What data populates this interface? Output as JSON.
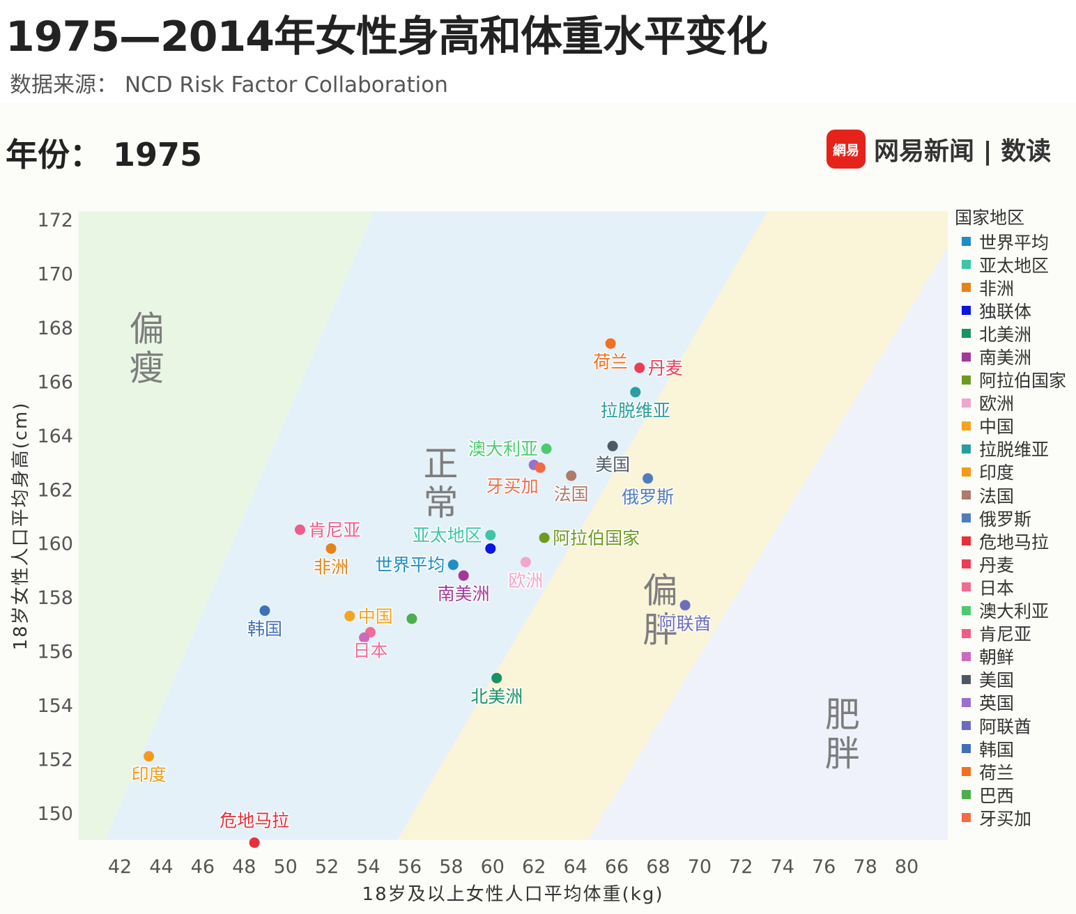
{
  "header": {
    "title": "1975—2014年女性身高和体重水平变化",
    "source": "数据来源： NCD Risk Factor Collaboration",
    "year_label": "年份： 1975",
    "brand_logo": "網易",
    "brand_name": "网易新闻 | 数读"
  },
  "chart_data": {
    "type": "scatter",
    "xlabel": "18岁及以上女性人口平均体重(kg)",
    "ylabel": "18岁女性人口平均身高(cm)",
    "xlim": [
      40,
      82
    ],
    "ylim": [
      149,
      172.3
    ],
    "xticks": [
      42,
      44,
      46,
      48,
      50,
      52,
      54,
      56,
      58,
      60,
      62,
      64,
      66,
      68,
      70,
      72,
      74,
      76,
      78,
      80
    ],
    "yticks": [
      150,
      152,
      154,
      156,
      158,
      160,
      162,
      164,
      166,
      168,
      170,
      172
    ],
    "grid": false,
    "legend_position": "right",
    "regions": [
      {
        "name": "偏瘦",
        "color": "#e9f6e4",
        "polygon": [
          [
            40,
            149
          ],
          [
            41.3,
            149
          ],
          [
            54.3,
            172.3
          ],
          [
            40,
            172.3
          ]
        ],
        "label_at": [
          43.3,
          167.5
        ]
      },
      {
        "name": "正常",
        "color": "#e5f1f8",
        "polygon": [
          [
            41.3,
            149
          ],
          [
            55.4,
            149
          ],
          [
            73.3,
            172.3
          ],
          [
            54.3,
            172.3
          ]
        ],
        "label_at": [
          57.5,
          162.5
        ]
      },
      {
        "name": "偏胖",
        "color": "#faf4d8",
        "polygon": [
          [
            55.4,
            149
          ],
          [
            64.6,
            149
          ],
          [
            82,
            171
          ],
          [
            82,
            172.3
          ],
          [
            73.3,
            172.3
          ]
        ],
        "label_at": [
          68.1,
          157.8
        ]
      },
      {
        "name": "肥胖",
        "color": "#eff2fa",
        "polygon": [
          [
            64.6,
            149
          ],
          [
            82,
            149
          ],
          [
            82,
            171
          ]
        ],
        "label_at": [
          76.9,
          153.2
        ]
      }
    ],
    "points": [
      {
        "name": "世界平均",
        "x": 58.1,
        "y": 159.2,
        "color": "#1f8dc6",
        "label_pos": "left"
      },
      {
        "name": "亚太地区",
        "x": 59.9,
        "y": 160.3,
        "color": "#3cc6a5",
        "label_pos": "left"
      },
      {
        "name": "非洲",
        "x": 52.2,
        "y": 159.8,
        "color": "#e5831b",
        "label_pos": "below"
      },
      {
        "name": "独联体",
        "x": 59.9,
        "y": 159.8,
        "color": "#0a17e0",
        "label_pos": "none"
      },
      {
        "name": "北美洲",
        "x": 60.2,
        "y": 155.0,
        "color": "#1a9265",
        "label_pos": "below"
      },
      {
        "name": "南美洲",
        "x": 58.6,
        "y": 158.8,
        "color": "#a2399a",
        "label_pos": "below"
      },
      {
        "name": "阿拉伯国家",
        "x": 62.5,
        "y": 160.2,
        "color": "#6f9a22",
        "label_pos": "right"
      },
      {
        "name": "欧洲",
        "x": 61.6,
        "y": 159.3,
        "color": "#f2a6cd",
        "label_pos": "below"
      },
      {
        "name": "中国",
        "x": 53.1,
        "y": 157.3,
        "color": "#f5a31e",
        "label_pos": "right"
      },
      {
        "name": "拉脱维亚",
        "x": 66.9,
        "y": 165.6,
        "color": "#2a9e9e",
        "label_pos": "below"
      },
      {
        "name": "印度",
        "x": 43.4,
        "y": 152.1,
        "color": "#f59a16",
        "label_pos": "below"
      },
      {
        "name": "法国",
        "x": 63.8,
        "y": 162.5,
        "color": "#ad7a6c",
        "label_pos": "below"
      },
      {
        "name": "俄罗斯",
        "x": 67.5,
        "y": 162.4,
        "color": "#4f7dbd",
        "label_pos": "below"
      },
      {
        "name": "危地马拉",
        "x": 48.5,
        "y": 148.9,
        "color": "#e6303a",
        "label_pos": "above"
      },
      {
        "name": "丹麦",
        "x": 67.1,
        "y": 166.5,
        "color": "#ec3d57",
        "label_pos": "right"
      },
      {
        "name": "日本",
        "x": 54.1,
        "y": 156.7,
        "color": "#f06c97",
        "label_pos": "below"
      },
      {
        "name": "澳大利亚",
        "x": 62.6,
        "y": 163.5,
        "color": "#4dca6f",
        "label_pos": "left"
      },
      {
        "name": "肯尼亚",
        "x": 50.7,
        "y": 160.5,
        "color": "#ee5b8c",
        "label_pos": "right"
      },
      {
        "name": "朝鲜",
        "x": 53.8,
        "y": 156.5,
        "color": "#cc6bbd",
        "label_pos": "none"
      },
      {
        "name": "美国",
        "x": 65.8,
        "y": 163.6,
        "color": "#4d5a66",
        "label_pos": "below"
      },
      {
        "name": "英国",
        "x": 62.0,
        "y": 162.9,
        "color": "#9a6fd0",
        "label_pos": "none"
      },
      {
        "name": "阿联酋",
        "x": 69.3,
        "y": 157.7,
        "color": "#6d6cbf",
        "label_pos": "below"
      },
      {
        "name": "韩国",
        "x": 49.0,
        "y": 157.5,
        "color": "#3f6fb5",
        "label_pos": "below"
      },
      {
        "name": "荷兰",
        "x": 65.7,
        "y": 167.4,
        "color": "#f07021",
        "label_pos": "below"
      },
      {
        "name": "巴西",
        "x": 56.1,
        "y": 157.2,
        "color": "#4cae4c",
        "label_pos": "none"
      },
      {
        "name": "牙买加",
        "x": 62.3,
        "y": 162.8,
        "color": "#f26b42",
        "label_pos": "below-left"
      }
    ]
  }
}
